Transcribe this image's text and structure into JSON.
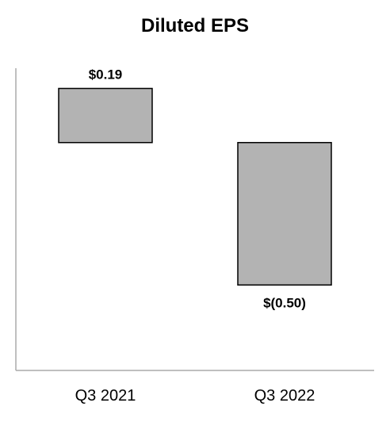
{
  "chart_data": {
    "type": "bar",
    "title": "Diluted EPS",
    "categories": [
      "Q3 2021",
      "Q3 2022"
    ],
    "values": [
      0.19,
      -0.5
    ],
    "data_labels": [
      "$0.19",
      "$(0.50)"
    ],
    "xlabel": "",
    "ylabel": "",
    "ylim": [
      -0.8,
      0.3
    ],
    "grid": false,
    "legend": "none",
    "colors": {
      "bar_fill": "#b3b3b3",
      "bar_stroke": "#000000",
      "axis": "#aaaaaa"
    }
  }
}
